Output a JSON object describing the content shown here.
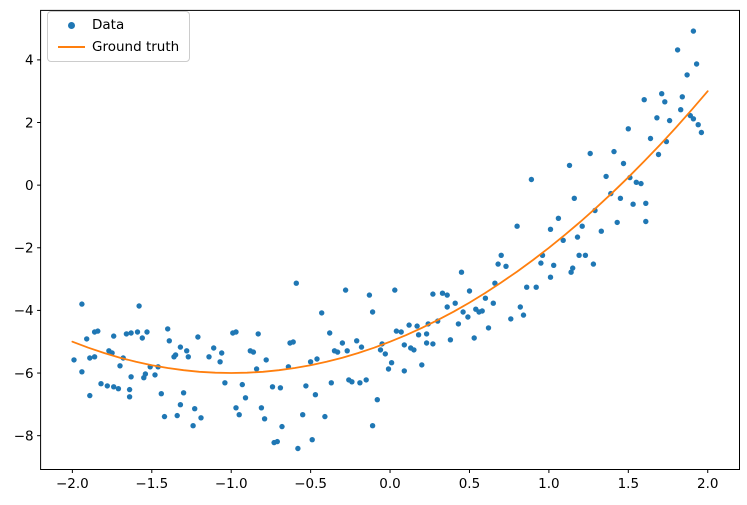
{
  "chart_data": {
    "type": "scatter",
    "title": "",
    "xlabel": "",
    "ylabel": "",
    "xlim": [
      -2.2,
      2.2
    ],
    "ylim": [
      -9.08,
      5.58
    ],
    "x_ticks": [
      -2.0,
      -1.5,
      -1.0,
      -0.5,
      0.0,
      0.5,
      1.0,
      1.5,
      2.0
    ],
    "x_tick_labels": [
      "−2.0",
      "−1.5",
      "−1.0",
      "−0.5",
      "0.0",
      "0.5",
      "1.0",
      "1.5",
      "2.0"
    ],
    "y_ticks": [
      4,
      2,
      0,
      -2,
      -4,
      -6,
      -8
    ],
    "y_tick_labels": [
      "4",
      "2",
      "0",
      "−2",
      "−4",
      "−6",
      "−8"
    ],
    "grid": false,
    "frame_color": "#000000",
    "background": "#ffffff",
    "legend": {
      "position": "upper left",
      "entries": [
        {
          "label": "Data",
          "marker": "dot",
          "color": "#1f77b4"
        },
        {
          "label": "Ground truth",
          "marker": "line",
          "color": "#ff7f0e"
        }
      ]
    },
    "series": [
      {
        "name": "Data",
        "type": "scatter",
        "color": "#1f77b4",
        "marker_radius": 2.7,
        "points": [
          [
            -1.94,
            -3.8
          ],
          [
            -1.58,
            -3.86
          ],
          [
            -1.91,
            -4.91
          ],
          [
            -1.86,
            -4.69
          ],
          [
            -1.84,
            -4.66
          ],
          [
            -1.74,
            -4.82
          ],
          [
            -1.66,
            -4.75
          ],
          [
            -1.63,
            -4.72
          ],
          [
            -1.59,
            -4.69
          ],
          [
            -1.56,
            -4.88
          ],
          [
            -1.53,
            -4.69
          ],
          [
            -1.4,
            -4.59
          ],
          [
            -1.39,
            -4.97
          ],
          [
            -1.99,
            -5.58
          ],
          [
            -1.94,
            -5.96
          ],
          [
            -1.89,
            -5.52
          ],
          [
            -1.86,
            -5.48
          ],
          [
            -1.77,
            -5.29
          ],
          [
            -1.75,
            -5.36
          ],
          [
            -1.7,
            -5.77
          ],
          [
            -1.68,
            -5.52
          ],
          [
            -1.63,
            -6.12
          ],
          [
            -1.55,
            -6.15
          ],
          [
            -1.54,
            -6.03
          ],
          [
            -1.51,
            -5.8
          ],
          [
            -1.48,
            -6.06
          ],
          [
            -1.46,
            -5.8
          ],
          [
            -1.36,
            -5.48
          ],
          [
            -1.35,
            -5.42
          ],
          [
            -1.32,
            -5.17
          ],
          [
            -1.28,
            -5.29
          ],
          [
            -1.27,
            -5.48
          ],
          [
            -1.21,
            -4.85
          ],
          [
            -1.14,
            -5.48
          ],
          [
            -1.11,
            -5.2
          ],
          [
            -1.82,
            -6.34
          ],
          [
            -1.78,
            -6.41
          ],
          [
            -1.74,
            -6.44
          ],
          [
            -1.71,
            -6.5
          ],
          [
            -1.89,
            -6.72
          ],
          [
            -1.64,
            -6.53
          ],
          [
            -1.64,
            -6.76
          ],
          [
            -1.44,
            -6.66
          ],
          [
            -1.3,
            -6.63
          ],
          [
            -1.32,
            -7.01
          ],
          [
            -1.23,
            -7.14
          ],
          [
            -1.42,
            -7.39
          ],
          [
            -1.34,
            -7.36
          ],
          [
            -1.19,
            -7.43
          ],
          [
            -1.24,
            -7.68
          ],
          [
            -1.06,
            -5.36
          ],
          [
            -1.07,
            -5.64
          ],
          [
            -0.59,
            -3.13
          ],
          [
            -0.28,
            -3.35
          ],
          [
            -0.13,
            -3.51
          ],
          [
            0.03,
            -3.35
          ],
          [
            -0.43,
            -4.08
          ],
          [
            -0.11,
            -4.05
          ],
          [
            -0.99,
            -4.72
          ],
          [
            -0.97,
            -4.69
          ],
          [
            -0.83,
            -4.75
          ],
          [
            -0.38,
            -4.72
          ],
          [
            -0.88,
            -5.29
          ],
          [
            -0.86,
            -5.33
          ],
          [
            -0.78,
            -5.58
          ],
          [
            -0.63,
            -5.04
          ],
          [
            -0.61,
            -5.01
          ],
          [
            -0.64,
            -5.8
          ],
          [
            -0.5,
            -5.64
          ],
          [
            -0.46,
            -5.55
          ],
          [
            -0.35,
            -5.29
          ],
          [
            -0.33,
            -5.33
          ],
          [
            -0.3,
            -5.04
          ],
          [
            -0.27,
            -5.29
          ],
          [
            -0.21,
            -4.97
          ],
          [
            -0.18,
            -5.17
          ],
          [
            -0.05,
            -5.07
          ],
          [
            0.04,
            -4.66
          ],
          [
            0.07,
            -4.69
          ],
          [
            -0.84,
            -5.87
          ],
          [
            -1.04,
            -6.31
          ],
          [
            -0.93,
            -6.37
          ],
          [
            -0.74,
            -6.44
          ],
          [
            -0.69,
            -6.47
          ],
          [
            -0.53,
            -6.41
          ],
          [
            -0.47,
            -6.69
          ],
          [
            -0.37,
            -6.31
          ],
          [
            -0.26,
            -6.22
          ],
          [
            -0.24,
            -6.28
          ],
          [
            -0.19,
            -6.31
          ],
          [
            -0.15,
            -6.22
          ],
          [
            -0.91,
            -6.79
          ],
          [
            -0.97,
            -7.11
          ],
          [
            -0.95,
            -7.33
          ],
          [
            -0.81,
            -7.11
          ],
          [
            -0.79,
            -7.46
          ],
          [
            -0.55,
            -7.33
          ],
          [
            -0.41,
            -7.39
          ],
          [
            -0.68,
            -7.71
          ],
          [
            -0.73,
            -8.22
          ],
          [
            -0.71,
            -8.19
          ],
          [
            -0.58,
            -8.41
          ],
          [
            -0.49,
            -8.13
          ],
          [
            -0.11,
            -7.68
          ],
          [
            -0.08,
            -6.85
          ],
          [
            -0.01,
            -5.87
          ],
          [
            0.7,
            -2.24
          ],
          [
            0.68,
            -2.52
          ],
          [
            0.73,
            -2.59
          ],
          [
            0.96,
            -2.24
          ],
          [
            0.95,
            -2.49
          ],
          [
            1.03,
            -2.56
          ],
          [
            1.15,
            -2.65
          ],
          [
            0.45,
            -2.78
          ],
          [
            1.01,
            -2.94
          ],
          [
            0.66,
            -3.13
          ],
          [
            0.86,
            -3.26
          ],
          [
            0.92,
            -3.26
          ],
          [
            0.27,
            -3.48
          ],
          [
            0.33,
            -3.45
          ],
          [
            0.36,
            -3.51
          ],
          [
            0.5,
            -3.38
          ],
          [
            0.36,
            -3.89
          ],
          [
            0.41,
            -3.77
          ],
          [
            0.6,
            -3.61
          ],
          [
            0.65,
            -3.77
          ],
          [
            0.46,
            -4.05
          ],
          [
            0.49,
            -4.21
          ],
          [
            0.54,
            -3.96
          ],
          [
            0.56,
            -4.05
          ],
          [
            0.58,
            -4.02
          ],
          [
            0.82,
            -3.89
          ],
          [
            0.84,
            -4.15
          ],
          [
            0.76,
            -4.27
          ],
          [
            0.12,
            -4.47
          ],
          [
            0.17,
            -4.5
          ],
          [
            0.24,
            -4.43
          ],
          [
            0.3,
            -4.34
          ],
          [
            0.43,
            -4.43
          ],
          [
            0.18,
            -4.78
          ],
          [
            0.23,
            -4.75
          ],
          [
            0.23,
            -5.04
          ],
          [
            0.27,
            -5.07
          ],
          [
            0.09,
            -5.1
          ],
          [
            0.13,
            -5.2
          ],
          [
            0.15,
            -5.26
          ],
          [
            0.38,
            -4.94
          ],
          [
            0.53,
            -4.88
          ],
          [
            0.62,
            -4.56
          ],
          [
            -0.06,
            -5.26
          ],
          [
            -0.03,
            -5.39
          ],
          [
            0.01,
            -5.67
          ],
          [
            0.09,
            -5.93
          ],
          [
            0.2,
            -5.74
          ],
          [
            1.91,
            4.92
          ],
          [
            1.81,
            4.32
          ],
          [
            1.93,
            3.87
          ],
          [
            1.87,
            3.52
          ],
          [
            1.6,
            2.73
          ],
          [
            1.71,
            2.92
          ],
          [
            1.73,
            2.66
          ],
          [
            1.84,
            2.82
          ],
          [
            1.83,
            2.41
          ],
          [
            1.68,
            2.15
          ],
          [
            1.76,
            2.06
          ],
          [
            1.89,
            2.22
          ],
          [
            1.91,
            2.12
          ],
          [
            1.94,
            1.93
          ],
          [
            1.96,
            1.68
          ],
          [
            1.5,
            1.8
          ],
          [
            1.64,
            1.49
          ],
          [
            1.74,
            1.39
          ],
          [
            1.26,
            1.01
          ],
          [
            1.41,
            1.07
          ],
          [
            1.69,
            0.98
          ],
          [
            1.13,
            0.63
          ],
          [
            1.47,
            0.69
          ],
          [
            1.36,
            0.28
          ],
          [
            1.51,
            0.24
          ],
          [
            1.55,
            0.09
          ],
          [
            1.58,
            0.05
          ],
          [
            1.39,
            -0.27
          ],
          [
            1.45,
            -0.42
          ],
          [
            1.16,
            -0.42
          ],
          [
            1.53,
            -0.61
          ],
          [
            1.61,
            -0.58
          ],
          [
            1.29,
            -0.81
          ],
          [
            1.61,
            -1.16
          ],
          [
            1.43,
            -1.19
          ],
          [
            1.21,
            -1.31
          ],
          [
            1.33,
            -1.47
          ],
          [
            1.18,
            -1.66
          ],
          [
            1.09,
            -1.76
          ],
          [
            1.19,
            -2.24
          ],
          [
            1.23,
            -2.24
          ],
          [
            1.28,
            -2.52
          ],
          [
            1.14,
            -2.78
          ],
          [
            0.89,
            0.18
          ],
          [
            1.06,
            -1.06
          ],
          [
            0.8,
            -1.31
          ],
          [
            1.01,
            -1.41
          ]
        ]
      },
      {
        "name": "Ground truth",
        "type": "line",
        "color": "#ff7f0e",
        "line_width": 1.8,
        "points": [
          [
            -2.0,
            -5.0
          ],
          [
            -1.9,
            -5.19
          ],
          [
            -1.8,
            -5.36
          ],
          [
            -1.7,
            -5.51
          ],
          [
            -1.6,
            -5.64
          ],
          [
            -1.5,
            -5.75
          ],
          [
            -1.4,
            -5.84
          ],
          [
            -1.3,
            -5.91
          ],
          [
            -1.2,
            -5.96
          ],
          [
            -1.1,
            -5.99
          ],
          [
            -1.0,
            -6.0
          ],
          [
            -0.9,
            -5.99
          ],
          [
            -0.8,
            -5.96
          ],
          [
            -0.7,
            -5.91
          ],
          [
            -0.6,
            -5.84
          ],
          [
            -0.5,
            -5.75
          ],
          [
            -0.4,
            -5.64
          ],
          [
            -0.3,
            -5.51
          ],
          [
            -0.2,
            -5.36
          ],
          [
            -0.1,
            -5.19
          ],
          [
            0.0,
            -5.0
          ],
          [
            0.1,
            -4.79
          ],
          [
            0.2,
            -4.56
          ],
          [
            0.3,
            -4.31
          ],
          [
            0.4,
            -4.04
          ],
          [
            0.5,
            -3.75
          ],
          [
            0.6,
            -3.44
          ],
          [
            0.7,
            -3.11
          ],
          [
            0.8,
            -2.76
          ],
          [
            0.9,
            -2.39
          ],
          [
            1.0,
            -2.0
          ],
          [
            1.1,
            -1.59
          ],
          [
            1.2,
            -1.16
          ],
          [
            1.3,
            -0.71
          ],
          [
            1.4,
            -0.24
          ],
          [
            1.5,
            0.25
          ],
          [
            1.6,
            0.76
          ],
          [
            1.7,
            1.29
          ],
          [
            1.8,
            1.84
          ],
          [
            1.9,
            2.41
          ],
          [
            2.0,
            3.0
          ]
        ]
      }
    ]
  }
}
